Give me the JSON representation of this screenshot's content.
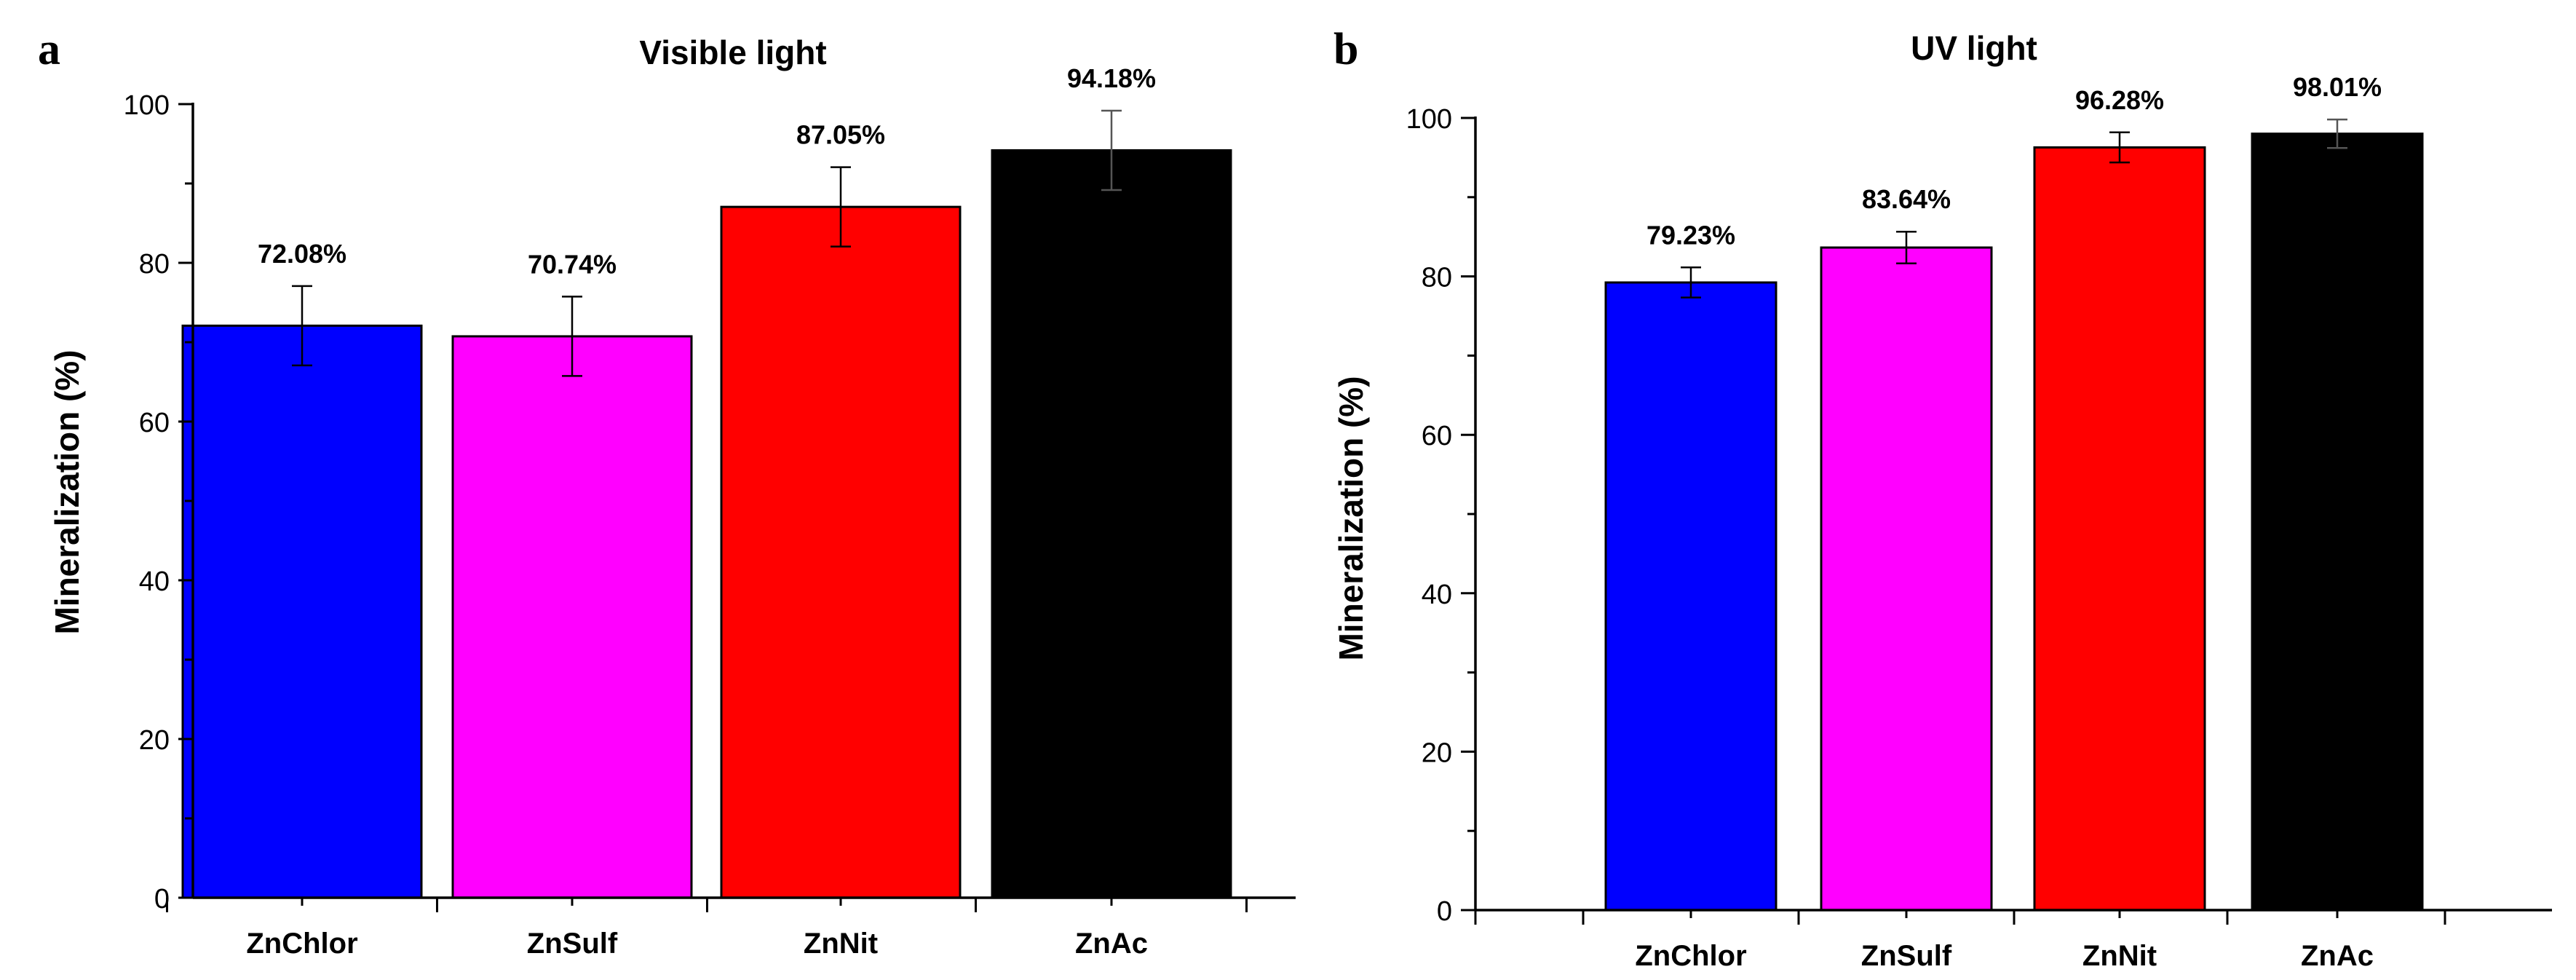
{
  "panels": [
    {
      "letter": "a",
      "title": "Visible light",
      "ylabel": "Mineralization (%)",
      "ytick_labels": [
        "0",
        "20",
        "40",
        "60",
        "80",
        "100"
      ]
    },
    {
      "letter": "b",
      "title": "UV light",
      "ylabel": "Mineralization (%)",
      "ytick_labels": [
        "0",
        "20",
        "40",
        "60",
        "80",
        "100"
      ]
    }
  ],
  "chart_data": [
    {
      "type": "bar",
      "title": "Visible light",
      "xlabel": "",
      "ylabel": "Mineralization (%)",
      "ylim": [
        0,
        100
      ],
      "yticks": [
        0,
        20,
        40,
        60,
        80,
        100
      ],
      "grid": false,
      "categories": [
        "ZnChlor",
        "ZnSulf",
        "ZnNit",
        "ZnAc"
      ],
      "values": [
        72.08,
        70.74,
        87.05,
        94.18
      ],
      "errors": [
        5.0,
        5.0,
        5.0,
        5.0
      ],
      "data_labels": [
        "72.08%",
        "70.74%",
        "87.05%",
        "94.18%"
      ],
      "colors": [
        "#0000ff",
        "#ff00ff",
        "#ff0000",
        "#000000"
      ]
    },
    {
      "type": "bar",
      "title": "UV light",
      "xlabel": "",
      "ylabel": "Mineralization (%)",
      "ylim": [
        0,
        100
      ],
      "yticks": [
        0,
        20,
        40,
        60,
        80,
        100
      ],
      "grid": false,
      "categories": [
        "ZnChlor",
        "ZnSulf",
        "ZnNit",
        "ZnAc"
      ],
      "values": [
        79.23,
        83.64,
        96.28,
        98.01
      ],
      "errors": [
        1.9,
        2.0,
        1.9,
        1.8
      ],
      "data_labels": [
        "79.23%",
        "83.64%",
        "96.28%",
        "98.01%"
      ],
      "colors": [
        "#0000ff",
        "#ff00ff",
        "#ff0000",
        "#000000"
      ]
    }
  ]
}
